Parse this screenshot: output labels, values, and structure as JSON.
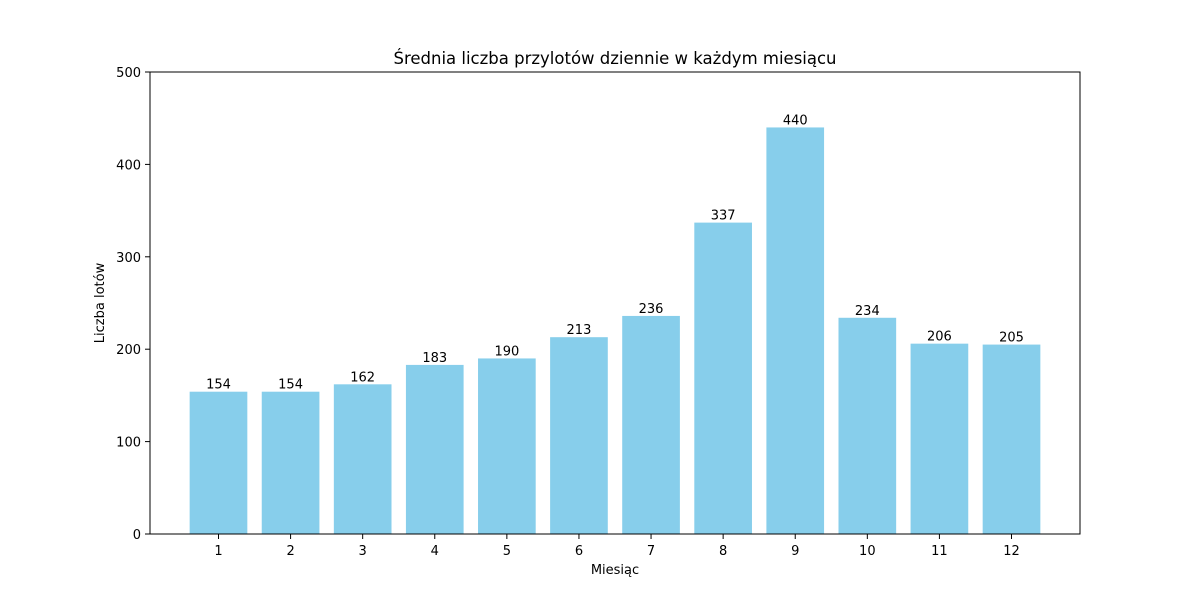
{
  "chart_data": {
    "type": "bar",
    "title": "Średnia liczba przylotów dziennie w każdym miesiącu",
    "xlabel": "Miesiąc",
    "ylabel": "Liczba lotów",
    "categories": [
      "1",
      "2",
      "3",
      "4",
      "5",
      "6",
      "7",
      "8",
      "9",
      "10",
      "11",
      "12"
    ],
    "values": [
      154,
      154,
      162,
      183,
      190,
      213,
      236,
      337,
      440,
      234,
      206,
      205
    ],
    "data_labels": [
      "154",
      "154",
      "162",
      "183",
      "190",
      "213",
      "236",
      "337",
      "440",
      "234",
      "206",
      "205"
    ],
    "ylim": [
      0,
      500
    ],
    "yticks": [
      0,
      100,
      200,
      300,
      400,
      500
    ],
    "ytick_labels": [
      "0",
      "100",
      "200",
      "300",
      "400",
      "500"
    ],
    "bar_color": "#87ceeb",
    "grid": false,
    "legend": "none"
  }
}
